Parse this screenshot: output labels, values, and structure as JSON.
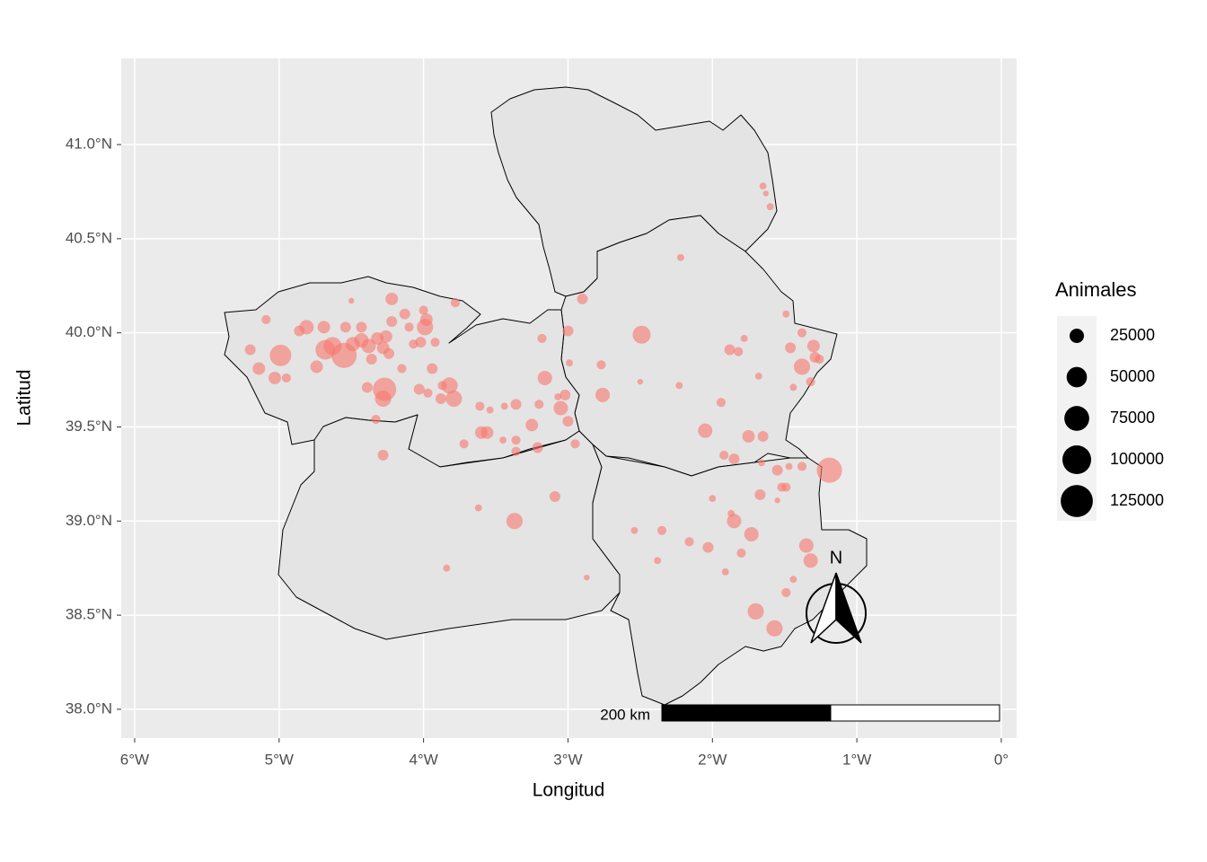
{
  "chart_data": {
    "type": "bubble",
    "x_label": "Longitud",
    "y_label": "Latitud",
    "xlim": [
      -6.093,
      0.106
    ],
    "ylim": [
      37.847,
      41.458
    ],
    "xticks": [
      {
        "value": -6,
        "label": "6°W"
      },
      {
        "value": -5,
        "label": "5°W"
      },
      {
        "value": -4,
        "label": "4°W"
      },
      {
        "value": -3,
        "label": "3°W"
      },
      {
        "value": -2,
        "label": "2°W"
      },
      {
        "value": -1,
        "label": "1°W"
      },
      {
        "value": 0,
        "label": "0°"
      }
    ],
    "yticks": [
      {
        "value": 38,
        "label": "38.0°N"
      },
      {
        "value": 38.5,
        "label": "38.5°N"
      },
      {
        "value": 39,
        "label": "39.0°N"
      },
      {
        "value": 39.5,
        "label": "39.5°N"
      },
      {
        "value": 40,
        "label": "40.0°N"
      },
      {
        "value": 40.5,
        "label": "40.5°N"
      },
      {
        "value": 41,
        "label": "41.0°N"
      }
    ],
    "grid": true,
    "color": "#f8766d",
    "x": [
      -5.09,
      -5.2,
      -5.14,
      -5.03,
      -4.99,
      -4.95,
      -4.86,
      -4.81,
      -4.74,
      -4.69,
      -4.68,
      -4.63,
      -4.55,
      -4.54,
      -4.49,
      -4.43,
      -4.43,
      -4.38,
      -4.36,
      -4.32,
      -4.28,
      -4.26,
      -4.22,
      -4.22,
      -4.24,
      -4.15,
      -4.13,
      -4.1,
      -4.07,
      -4.02,
      -4.0,
      -3.99,
      -3.98,
      -3.94,
      -3.92,
      -4.39,
      -4.27,
      -4.28,
      -4.33,
      -4.03,
      -3.97,
      -3.87,
      -3.82,
      -3.79,
      -3.88,
      -3.78,
      -4.28,
      -4.5,
      -3.61,
      -3.54,
      -3.44,
      -3.6,
      -3.56,
      -3.72,
      -3.36,
      -3.45,
      -3.36,
      -3.36,
      -3.2,
      -3.16,
      -3.25,
      -3.21,
      -3.18,
      -3.05,
      -3.0,
      -3.02,
      -3.07,
      -2.99,
      -2.95,
      -3.0,
      -3.62,
      -3.37,
      -3.09,
      -3.84,
      -2.87,
      -2.9,
      -2.49,
      -2.76,
      -2.77,
      -2.22,
      -2.5,
      -2.23,
      -1.94,
      -2.05,
      -1.88,
      -1.82,
      -1.78,
      -1.68,
      -1.46,
      -1.49,
      -1.38,
      -1.3,
      -1.38,
      -1.29,
      -1.26,
      -1.32,
      -1.44,
      -1.75,
      -1.65,
      -1.92,
      -1.85,
      -1.66,
      -1.65,
      -1.63,
      -1.6,
      -1.19,
      -1.55,
      -1.47,
      -1.38,
      -1.52,
      -1.49,
      -1.55,
      -1.67,
      -2.0,
      -1.87,
      -1.85,
      -1.73,
      -2.54,
      -2.35,
      -2.16,
      -2.03,
      -2.38,
      -1.91,
      -1.8,
      -1.35,
      -1.32,
      -1.44,
      -1.49,
      -1.7,
      -1.57
    ],
    "y": [
      40.07,
      39.91,
      39.81,
      39.76,
      39.88,
      39.76,
      40.01,
      40.03,
      39.82,
      40.03,
      39.91,
      39.93,
      39.88,
      40.03,
      39.94,
      40.03,
      39.96,
      39.93,
      39.86,
      39.97,
      39.92,
      39.98,
      40.18,
      40.06,
      39.89,
      39.81,
      40.1,
      40.03,
      39.94,
      39.95,
      40.12,
      40.03,
      40.07,
      39.81,
      39.95,
      39.71,
      39.7,
      39.65,
      39.54,
      39.7,
      39.68,
      39.72,
      39.72,
      39.65,
      39.65,
      40.16,
      39.35,
      40.17,
      39.61,
      39.59,
      39.61,
      39.47,
      39.47,
      39.41,
      39.62,
      39.43,
      39.43,
      39.37,
      39.62,
      39.76,
      39.51,
      39.39,
      39.97,
      39.6,
      39.53,
      39.67,
      39.66,
      39.84,
      39.41,
      40.01,
      39.07,
      39.0,
      39.13,
      38.75,
      38.7,
      40.18,
      39.99,
      39.67,
      39.83,
      40.4,
      39.74,
      39.72,
      39.63,
      39.48,
      39.91,
      39.9,
      39.97,
      39.77,
      39.92,
      40.1,
      40.0,
      39.93,
      39.82,
      39.87,
      39.86,
      39.74,
      39.71,
      39.45,
      39.45,
      39.35,
      39.33,
      39.31,
      40.78,
      40.74,
      40.67,
      39.27,
      39.27,
      39.29,
      39.29,
      39.18,
      39.18,
      39.11,
      39.14,
      39.12,
      39.04,
      39.0,
      38.93,
      38.95,
      38.95,
      38.89,
      38.86,
      38.79,
      38.73,
      38.83,
      38.87,
      38.79,
      38.69,
      38.62,
      38.52,
      38.43
    ],
    "sizes": [
      10000,
      14000,
      19000,
      19000,
      56000,
      10000,
      14000,
      25000,
      19000,
      19000,
      47000,
      39000,
      77000,
      14000,
      25000,
      14000,
      25000,
      25000,
      14000,
      19000,
      19000,
      19000,
      19000,
      14000,
      14000,
      10000,
      14000,
      10000,
      10000,
      14000,
      10000,
      32000,
      19000,
      14000,
      10000,
      14000,
      66000,
      32000,
      10000,
      14000,
      10000,
      10000,
      32000,
      32000,
      14000,
      10000,
      14000,
      4000,
      10000,
      6000,
      6000,
      19000,
      19000,
      10000,
      14000,
      6000,
      10000,
      10000,
      10000,
      25000,
      19000,
      14000,
      10000,
      25000,
      14000,
      14000,
      6000,
      6000,
      10000,
      14000,
      6000,
      32000,
      14000,
      6000,
      4000,
      14000,
      39000,
      25000,
      10000,
      6000,
      4000,
      6000,
      10000,
      25000,
      14000,
      10000,
      6000,
      6000,
      14000,
      6000,
      10000,
      19000,
      32000,
      14000,
      10000,
      10000,
      6000,
      19000,
      14000,
      10000,
      14000,
      6000,
      6000,
      4000,
      6000,
      77000,
      14000,
      6000,
      10000,
      10000,
      10000,
      4000,
      14000,
      6000,
      6000,
      25000,
      25000,
      6000,
      10000,
      10000,
      14000,
      6000,
      6000,
      10000,
      25000,
      25000,
      6000,
      10000,
      32000,
      32000
    ],
    "size_legend": {
      "title": "Animales",
      "values": [
        25000,
        50000,
        75000,
        100000,
        125000
      ]
    },
    "scale_bar_label": "200 km",
    "north_label": "N"
  }
}
